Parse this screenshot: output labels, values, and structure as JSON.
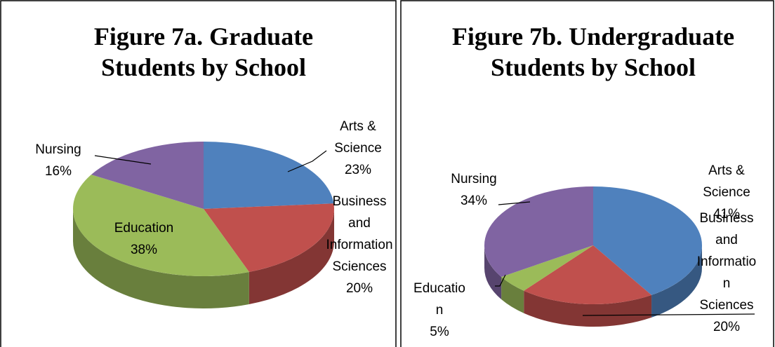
{
  "chart_data": [
    {
      "type": "pie",
      "title": "Figure 7a. Graduate Students by School",
      "categories": [
        "Arts & Science",
        "Business and Information Sciences",
        "Education",
        "Nursing"
      ],
      "values": [
        23,
        20,
        38,
        16
      ],
      "value_labels": [
        "23%",
        "20%",
        "38%",
        "16%"
      ],
      "colors": [
        "#4f81bd",
        "#c0504d",
        "#9bbb59",
        "#8064a2"
      ]
    },
    {
      "type": "pie",
      "title": "Figure 7b. Undergraduate Students by School",
      "categories": [
        "Arts & Science",
        "Business and Information Sciences",
        "Education",
        "Nursing"
      ],
      "values": [
        41,
        20,
        5,
        34
      ],
      "value_labels": [
        "41%",
        "20%",
        "5%",
        "34%"
      ],
      "colors": [
        "#4f81bd",
        "#c0504d",
        "#9bbb59",
        "#8064a2"
      ]
    }
  ]
}
